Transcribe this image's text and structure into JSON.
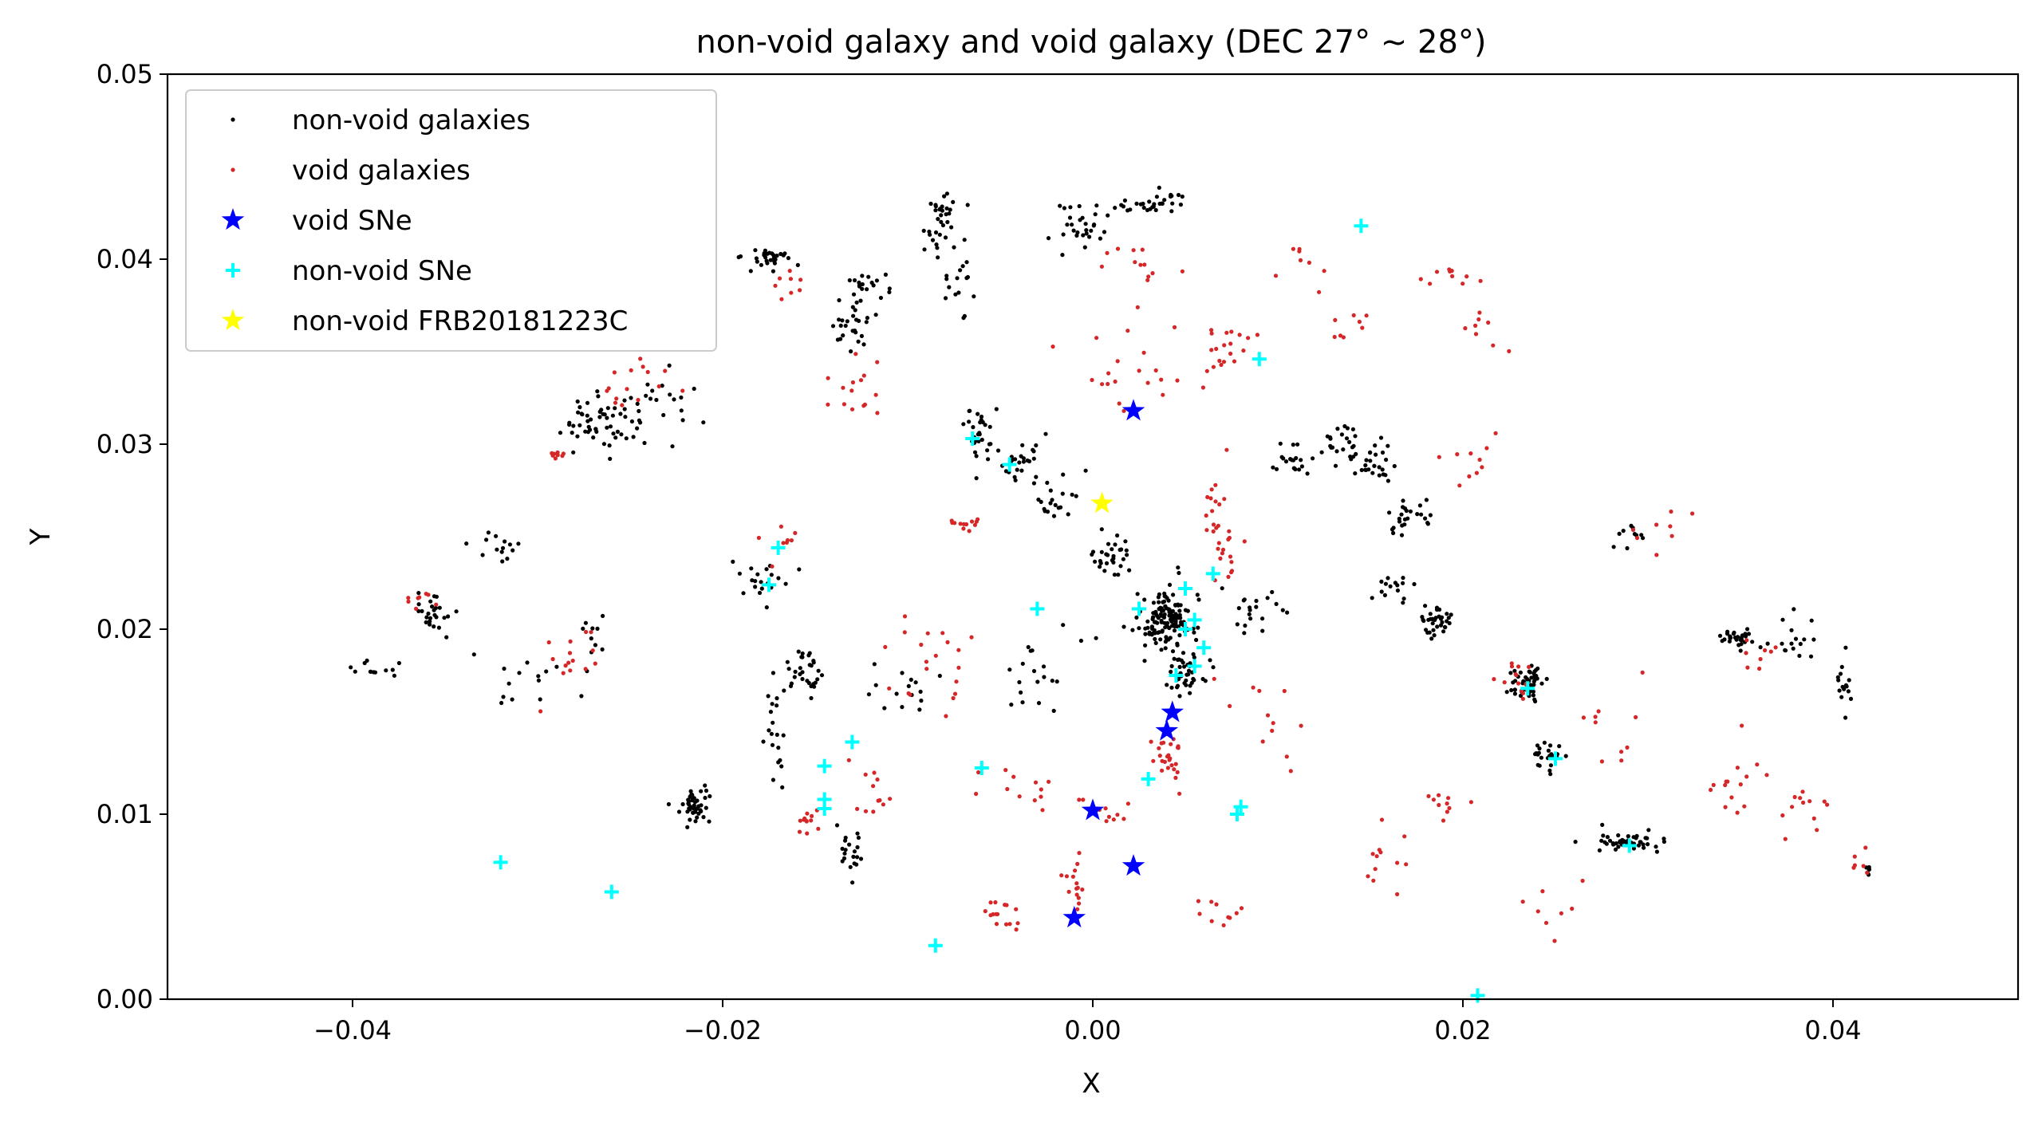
{
  "chart_data": {
    "type": "scatter",
    "title": "non-void galaxy and void galaxy (DEC 27° ~ 28°)",
    "xlabel": "X",
    "ylabel": "Y",
    "xlim": [
      -0.05,
      0.05
    ],
    "ylim": [
      0.0,
      0.05
    ],
    "xticks": [
      -0.04,
      -0.02,
      0.0,
      0.02,
      0.04
    ],
    "xtick_labels": [
      "−0.04",
      "−0.02",
      "0.00",
      "0.02",
      "0.04"
    ],
    "yticks": [
      0.0,
      0.01,
      0.02,
      0.03,
      0.04,
      0.05
    ],
    "ytick_labels": [
      "0.00",
      "0.01",
      "0.02",
      "0.03",
      "0.04",
      "0.05"
    ],
    "grid": false,
    "legend_position": "top-left",
    "series": [
      {
        "name": "non-void galaxies",
        "marker": "dot",
        "color": "#000000",
        "clusters": [
          {
            "x": -0.0385,
            "y": 0.0175,
            "sx": 0.0012,
            "sy": 0.0008,
            "n": 12
          },
          {
            "x": -0.0355,
            "y": 0.021,
            "sx": 0.001,
            "sy": 0.0012,
            "n": 25
          },
          {
            "x": -0.0325,
            "y": 0.0245,
            "sx": 0.0015,
            "sy": 0.001,
            "n": 14
          },
          {
            "x": -0.031,
            "y": 0.0175,
            "sx": 0.002,
            "sy": 0.0015,
            "n": 14
          },
          {
            "x": -0.027,
            "y": 0.031,
            "sx": 0.0015,
            "sy": 0.0015,
            "n": 45
          },
          {
            "x": -0.024,
            "y": 0.032,
            "sx": 0.002,
            "sy": 0.0015,
            "n": 30
          },
          {
            "x": -0.027,
            "y": 0.0195,
            "sx": 0.001,
            "sy": 0.0015,
            "n": 10
          },
          {
            "x": -0.0215,
            "y": 0.0105,
            "sx": 0.0008,
            "sy": 0.0008,
            "n": 45
          },
          {
            "x": -0.0175,
            "y": 0.04,
            "sx": 0.001,
            "sy": 0.0006,
            "n": 30
          },
          {
            "x": -0.018,
            "y": 0.0225,
            "sx": 0.0012,
            "sy": 0.001,
            "n": 20
          },
          {
            "x": -0.0155,
            "y": 0.018,
            "sx": 0.0008,
            "sy": 0.001,
            "n": 30
          },
          {
            "x": -0.017,
            "y": 0.015,
            "sx": 0.0006,
            "sy": 0.003,
            "n": 20
          },
          {
            "x": -0.013,
            "y": 0.008,
            "sx": 0.0008,
            "sy": 0.0015,
            "n": 20
          },
          {
            "x": -0.013,
            "y": 0.0365,
            "sx": 0.001,
            "sy": 0.001,
            "n": 25
          },
          {
            "x": -0.012,
            "y": 0.0385,
            "sx": 0.0015,
            "sy": 0.0008,
            "n": 20
          },
          {
            "x": -0.008,
            "y": 0.042,
            "sx": 0.001,
            "sy": 0.0012,
            "n": 35
          },
          {
            "x": -0.007,
            "y": 0.039,
            "sx": 0.001,
            "sy": 0.0015,
            "n": 15
          },
          {
            "x": -0.006,
            "y": 0.0305,
            "sx": 0.0008,
            "sy": 0.0015,
            "n": 30
          },
          {
            "x": -0.004,
            "y": 0.029,
            "sx": 0.001,
            "sy": 0.001,
            "n": 25
          },
          {
            "x": -0.002,
            "y": 0.027,
            "sx": 0.001,
            "sy": 0.0012,
            "n": 20
          },
          {
            "x": -0.003,
            "y": 0.018,
            "sx": 0.002,
            "sy": 0.002,
            "n": 20
          },
          {
            "x": -0.01,
            "y": 0.017,
            "sx": 0.002,
            "sy": 0.0015,
            "n": 15
          },
          {
            "x": -0.0005,
            "y": 0.042,
            "sx": 0.001,
            "sy": 0.001,
            "n": 30
          },
          {
            "x": 0.003,
            "y": 0.043,
            "sx": 0.0015,
            "sy": 0.0006,
            "n": 30
          },
          {
            "x": 0.001,
            "y": 0.024,
            "sx": 0.001,
            "sy": 0.001,
            "n": 30
          },
          {
            "x": 0.004,
            "y": 0.0205,
            "sx": 0.0012,
            "sy": 0.0015,
            "n": 140
          },
          {
            "x": 0.005,
            "y": 0.0175,
            "sx": 0.001,
            "sy": 0.001,
            "n": 40
          },
          {
            "x": 0.009,
            "y": 0.021,
            "sx": 0.0015,
            "sy": 0.0012,
            "n": 20
          },
          {
            "x": 0.011,
            "y": 0.029,
            "sx": 0.0008,
            "sy": 0.0008,
            "n": 20
          },
          {
            "x": 0.0135,
            "y": 0.03,
            "sx": 0.0008,
            "sy": 0.0012,
            "n": 25
          },
          {
            "x": 0.015,
            "y": 0.029,
            "sx": 0.001,
            "sy": 0.0012,
            "n": 25
          },
          {
            "x": 0.017,
            "y": 0.026,
            "sx": 0.001,
            "sy": 0.0008,
            "n": 25
          },
          {
            "x": 0.0185,
            "y": 0.0205,
            "sx": 0.0008,
            "sy": 0.0008,
            "n": 35
          },
          {
            "x": 0.016,
            "y": 0.022,
            "sx": 0.001,
            "sy": 0.0008,
            "n": 15
          },
          {
            "x": 0.0235,
            "y": 0.017,
            "sx": 0.0008,
            "sy": 0.0008,
            "n": 50
          },
          {
            "x": 0.0245,
            "y": 0.013,
            "sx": 0.0008,
            "sy": 0.0006,
            "n": 25
          },
          {
            "x": 0.029,
            "y": 0.0085,
            "sx": 0.0015,
            "sy": 0.0005,
            "n": 45
          },
          {
            "x": 0.029,
            "y": 0.025,
            "sx": 0.0008,
            "sy": 0.001,
            "n": 10
          },
          {
            "x": 0.035,
            "y": 0.0195,
            "sx": 0.001,
            "sy": 0.0004,
            "n": 30
          },
          {
            "x": 0.038,
            "y": 0.0195,
            "sx": 0.0008,
            "sy": 0.0015,
            "n": 15
          },
          {
            "x": 0.0405,
            "y": 0.017,
            "sx": 0.0005,
            "sy": 0.0012,
            "n": 15
          },
          {
            "x": 0.042,
            "y": 0.007,
            "sx": 0.0003,
            "sy": 0.0006,
            "n": 6
          }
        ]
      },
      {
        "name": "void galaxies",
        "marker": "dot",
        "color": "#d62728",
        "clusters": [
          {
            "x": -0.0365,
            "y": 0.0215,
            "sx": 0.0008,
            "sy": 0.0006,
            "n": 8
          },
          {
            "x": -0.029,
            "y": 0.0295,
            "sx": 0.0005,
            "sy": 0.0003,
            "n": 8
          },
          {
            "x": -0.028,
            "y": 0.0185,
            "sx": 0.0015,
            "sy": 0.002,
            "n": 15
          },
          {
            "x": -0.025,
            "y": 0.033,
            "sx": 0.002,
            "sy": 0.0015,
            "n": 15
          },
          {
            "x": -0.017,
            "y": 0.025,
            "sx": 0.001,
            "sy": 0.001,
            "n": 8
          },
          {
            "x": -0.016,
            "y": 0.0385,
            "sx": 0.001,
            "sy": 0.0008,
            "n": 8
          },
          {
            "x": -0.013,
            "y": 0.033,
            "sx": 0.0012,
            "sy": 0.0015,
            "n": 15
          },
          {
            "x": -0.0155,
            "y": 0.0095,
            "sx": 0.0008,
            "sy": 0.001,
            "n": 12
          },
          {
            "x": -0.012,
            "y": 0.011,
            "sx": 0.001,
            "sy": 0.0015,
            "n": 12
          },
          {
            "x": -0.009,
            "y": 0.018,
            "sx": 0.002,
            "sy": 0.003,
            "n": 20
          },
          {
            "x": -0.007,
            "y": 0.0255,
            "sx": 0.001,
            "sy": 0.0006,
            "n": 12
          },
          {
            "x": -0.004,
            "y": 0.0115,
            "sx": 0.0015,
            "sy": 0.001,
            "n": 12
          },
          {
            "x": -0.005,
            "y": 0.0045,
            "sx": 0.0015,
            "sy": 0.0008,
            "n": 15
          },
          {
            "x": -0.001,
            "y": 0.006,
            "sx": 0.0006,
            "sy": 0.0015,
            "n": 15
          },
          {
            "x": 0.001,
            "y": 0.01,
            "sx": 0.0015,
            "sy": 0.0008,
            "n": 10
          },
          {
            "x": 0.002,
            "y": 0.034,
            "sx": 0.002,
            "sy": 0.003,
            "n": 20
          },
          {
            "x": 0.0025,
            "y": 0.04,
            "sx": 0.002,
            "sy": 0.0015,
            "n": 12
          },
          {
            "x": 0.004,
            "y": 0.013,
            "sx": 0.0008,
            "sy": 0.0012,
            "n": 25
          },
          {
            "x": 0.007,
            "y": 0.035,
            "sx": 0.0015,
            "sy": 0.0015,
            "n": 20
          },
          {
            "x": 0.007,
            "y": 0.025,
            "sx": 0.0008,
            "sy": 0.003,
            "n": 30
          },
          {
            "x": 0.007,
            "y": 0.005,
            "sx": 0.001,
            "sy": 0.001,
            "n": 10
          },
          {
            "x": 0.01,
            "y": 0.015,
            "sx": 0.002,
            "sy": 0.003,
            "n": 12
          },
          {
            "x": 0.011,
            "y": 0.04,
            "sx": 0.002,
            "sy": 0.002,
            "n": 8
          },
          {
            "x": 0.014,
            "y": 0.036,
            "sx": 0.0015,
            "sy": 0.001,
            "n": 8
          },
          {
            "x": 0.016,
            "y": 0.008,
            "sx": 0.002,
            "sy": 0.0025,
            "n": 12
          },
          {
            "x": 0.019,
            "y": 0.039,
            "sx": 0.0015,
            "sy": 0.0008,
            "n": 10
          },
          {
            "x": 0.021,
            "y": 0.036,
            "sx": 0.001,
            "sy": 0.001,
            "n": 8
          },
          {
            "x": 0.02,
            "y": 0.029,
            "sx": 0.0015,
            "sy": 0.002,
            "n": 10
          },
          {
            "x": 0.019,
            "y": 0.0105,
            "sx": 0.001,
            "sy": 0.0006,
            "n": 10
          },
          {
            "x": 0.023,
            "y": 0.017,
            "sx": 0.001,
            "sy": 0.001,
            "n": 15
          },
          {
            "x": 0.025,
            "y": 0.005,
            "sx": 0.0015,
            "sy": 0.0015,
            "n": 8
          },
          {
            "x": 0.028,
            "y": 0.015,
            "sx": 0.002,
            "sy": 0.002,
            "n": 10
          },
          {
            "x": 0.031,
            "y": 0.025,
            "sx": 0.0015,
            "sy": 0.0015,
            "n": 8
          },
          {
            "x": 0.035,
            "y": 0.012,
            "sx": 0.0015,
            "sy": 0.0015,
            "n": 15
          },
          {
            "x": 0.0385,
            "y": 0.01,
            "sx": 0.001,
            "sy": 0.0015,
            "n": 12
          },
          {
            "x": 0.036,
            "y": 0.0185,
            "sx": 0.001,
            "sy": 0.0008,
            "n": 8
          },
          {
            "x": 0.0415,
            "y": 0.0075,
            "sx": 0.0004,
            "sy": 0.0006,
            "n": 6
          }
        ]
      },
      {
        "name": "void SNe",
        "marker": "star",
        "color": "#0000ff",
        "points": [
          [
            0.0022,
            0.0318
          ],
          [
            0.0043,
            0.0155
          ],
          [
            0.004,
            0.0145
          ],
          [
            0.0,
            0.0102
          ],
          [
            0.0022,
            0.0072
          ],
          [
            -0.001,
            0.0044
          ]
        ]
      },
      {
        "name": "non-void SNe",
        "marker": "plus",
        "color": "#00ffff",
        "points": [
          [
            0.0145,
            0.0418
          ],
          [
            0.009,
            0.0346
          ],
          [
            -0.0065,
            0.0303
          ],
          [
            -0.0045,
            0.0289
          ],
          [
            -0.017,
            0.0244
          ],
          [
            -0.0175,
            0.0224
          ],
          [
            -0.003,
            0.0211
          ],
          [
            0.0025,
            0.0211
          ],
          [
            0.005,
            0.0222
          ],
          [
            0.0055,
            0.0205
          ],
          [
            0.006,
            0.019
          ],
          [
            0.0045,
            0.0175
          ],
          [
            0.0055,
            0.018
          ],
          [
            0.0065,
            0.023
          ],
          [
            0.005,
            0.02
          ],
          [
            -0.013,
            0.0139
          ],
          [
            -0.0145,
            0.0126
          ],
          [
            -0.006,
            0.0125
          ],
          [
            -0.0145,
            0.0108
          ],
          [
            -0.0145,
            0.0103
          ],
          [
            0.003,
            0.0119
          ],
          [
            0.008,
            0.0104
          ],
          [
            0.0078,
            0.01
          ],
          [
            0.0235,
            0.0168
          ],
          [
            0.025,
            0.013
          ],
          [
            0.029,
            0.0083
          ],
          [
            -0.032,
            0.0074
          ],
          [
            -0.026,
            0.0058
          ],
          [
            -0.0085,
            0.0029
          ],
          [
            0.0208,
            0.0002
          ]
        ]
      },
      {
        "name": "non-void FRB20181223C",
        "marker": "star",
        "color": "#ffff00",
        "points": [
          [
            0.0005,
            0.0268
          ]
        ]
      }
    ]
  }
}
